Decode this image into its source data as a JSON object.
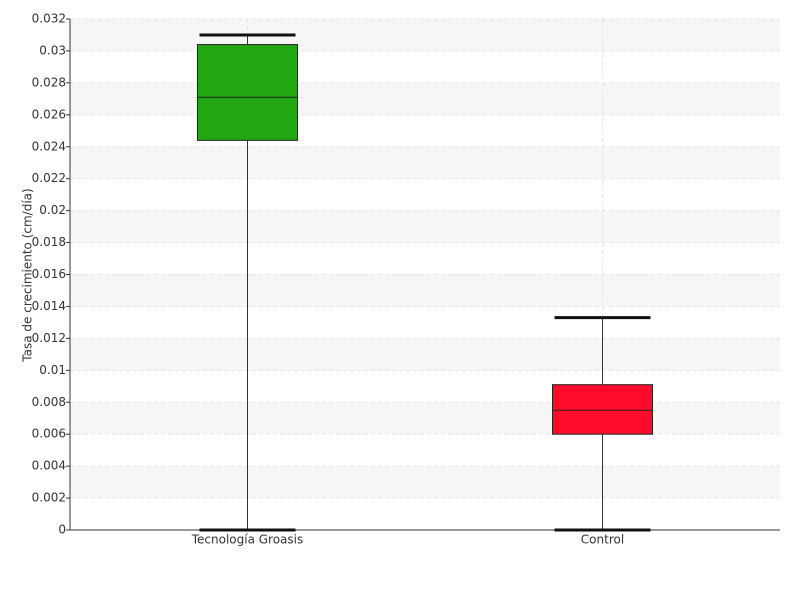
{
  "chart_data": {
    "type": "box",
    "y_label": "Tasa de crecimiento (cm/día)",
    "categories": [
      "Tecnología Groasis",
      "Control"
    ],
    "boxes": [
      {
        "min": 0,
        "q1": 0.0244,
        "median": 0.0271,
        "q3": 0.0304,
        "max": 0.031,
        "color": "#22a612"
      },
      {
        "min": 0,
        "q1": 0.006,
        "median": 0.0075,
        "q3": 0.0091,
        "max": 0.0133,
        "color": "#ff0a2a"
      }
    ],
    "ylim": [
      0,
      0.032
    ],
    "yticks": [
      0,
      0.002,
      0.004,
      0.006,
      0.008,
      0.01,
      0.012,
      0.014,
      0.016,
      0.018,
      0.02,
      0.022,
      0.024,
      0.026,
      0.028,
      0.03,
      0.032
    ],
    "grid": true
  }
}
